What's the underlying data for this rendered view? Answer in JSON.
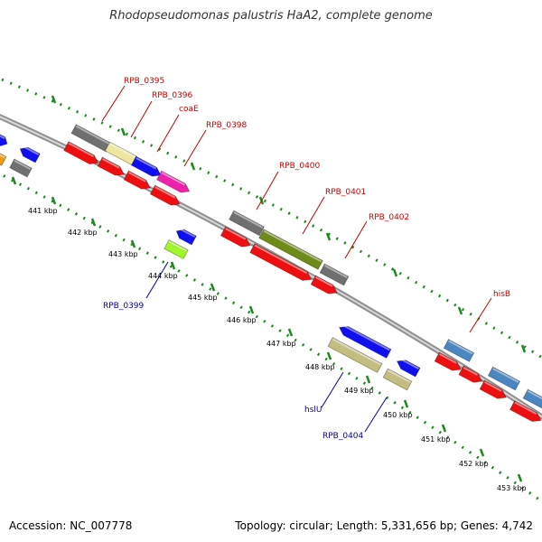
{
  "title": "Rhodopseudomonas palustris HaA2, complete genome",
  "footer": {
    "accession": "Accession: NC_007778",
    "topology": "Topology: circular; Length: 5,331,656 bp; Genes: 4,742"
  },
  "colors": {
    "gray": "#707070",
    "yellow": "#efe7a0",
    "blue": "#1010ee",
    "pink": "#ee22aa",
    "red": "#ee1010",
    "olive": "#6f8a1a",
    "lime": "#9ef52a",
    "khaki": "#c4bd82",
    "steel": "#4a86c0",
    "orange": "#f09a10",
    "tick": "#1a8a1a",
    "backbone": "#909090",
    "label_red": "#cc0000",
    "label_blue": "#0000aa"
  },
  "scale_labels": [
    "441 kbp",
    "442 kbp",
    "443 kbp",
    "444 kbp",
    "445 kbp",
    "446 kbp",
    "447 kbp",
    "448 kbp",
    "449 kbp",
    "450 kbp",
    "451 kbp",
    "452 kbp",
    "453 kbp"
  ],
  "gene_labels": {
    "rpb0395": "RPB_0395",
    "rpb0396": "RPB_0396",
    "coae": "coaE",
    "rpb0398": "RPB_0398",
    "rpb0400": "RPB_0400",
    "rpb0401": "RPB_0401",
    "rpb0402": "RPB_0402",
    "hisb": "hisB",
    "rpb0399": "RPB_0399",
    "hslu": "hslU",
    "rpb0404": "RPB_0404"
  }
}
